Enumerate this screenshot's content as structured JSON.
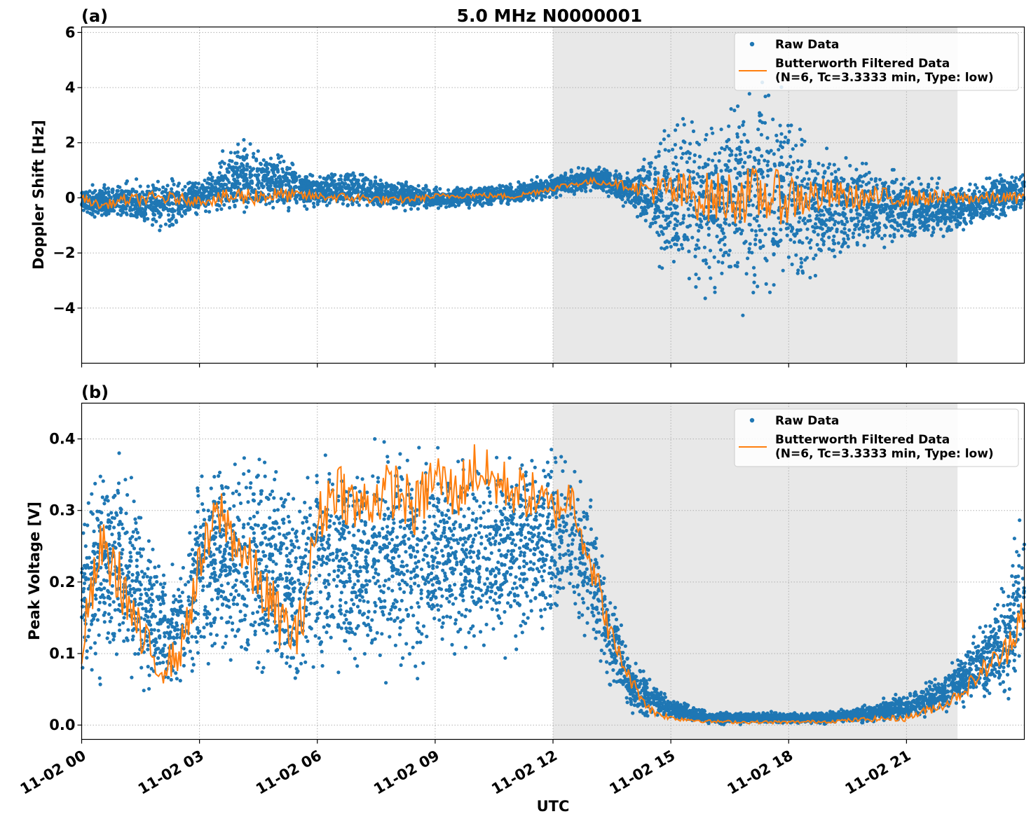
{
  "title": "5.0 MHz N0000001",
  "colors": {
    "raw": "#1f77b4",
    "filtered": "#ff7f0e",
    "shade": "#e8e8e8"
  },
  "chart_data": [
    {
      "type": "scatter",
      "panel_label": "(a)",
      "ylabel": "Doppler Shift [Hz]",
      "xlabel": "",
      "ylim": [
        -6.0,
        6.2
      ],
      "yticks": [
        -4,
        -2,
        0,
        2,
        4,
        6
      ],
      "ytick_labels": [
        "−4",
        "−2",
        "0",
        "2",
        "4",
        "6"
      ],
      "xlim_hours": [
        0,
        24
      ],
      "shaded_hours": [
        12,
        22.3
      ],
      "grid": true,
      "legend_position": "top-right",
      "legend": [
        "Raw Data",
        "Butterworth Filtered Data\n(N=6, Tc=3.3333 min, Type: low)"
      ],
      "series": [
        {
          "name": "Raw Data",
          "kind": "points",
          "envelope_hours": [
            0,
            1,
            2,
            3,
            4,
            5,
            6,
            7,
            8,
            9,
            10,
            11,
            12,
            13,
            14,
            15,
            16,
            17,
            18,
            19,
            20,
            21,
            22,
            23,
            24
          ],
          "upper": [
            0.5,
            0.7,
            0.9,
            0.8,
            2.4,
            1.9,
            0.9,
            1.2,
            0.7,
            0.5,
            0.5,
            0.6,
            0.9,
            1.3,
            1.0,
            3.5,
            4.2,
            5.0,
            4.4,
            2.4,
            1.6,
            1.2,
            0.8,
            0.9,
            1.2
          ],
          "lower": [
            -0.7,
            -1.0,
            -1.5,
            -0.7,
            -1.0,
            -0.8,
            -0.5,
            -0.5,
            -0.5,
            -0.5,
            -0.4,
            -0.3,
            -0.1,
            0.2,
            -0.5,
            -3.8,
            -4.3,
            -4.6,
            -4.4,
            -3.0,
            -2.2,
            -1.8,
            -1.7,
            -1.2,
            -0.7
          ]
        },
        {
          "name": "Butterworth Filtered Data",
          "kind": "line",
          "hours": [
            0,
            0.5,
            1,
            2,
            3,
            4,
            5,
            6,
            7,
            8,
            9,
            10,
            11,
            12,
            12.5,
            13,
            13.5,
            14,
            15,
            16,
            17,
            18,
            19,
            20,
            21,
            22,
            23,
            24
          ],
          "values": [
            0.0,
            -0.3,
            -0.1,
            0.0,
            -0.1,
            0.05,
            0.1,
            0.05,
            0.0,
            -0.1,
            0.05,
            0.1,
            0.05,
            0.35,
            0.5,
            0.6,
            0.55,
            0.4,
            0.2,
            0.0,
            0.1,
            0.0,
            0.1,
            0.0,
            0.0,
            0.0,
            0.0,
            0.0
          ]
        }
      ]
    },
    {
      "type": "scatter",
      "panel_label": "(b)",
      "ylabel": "Peak Voltage [V]",
      "xlabel": "UTC",
      "ylim": [
        -0.02,
        0.45
      ],
      "yticks": [
        0.0,
        0.1,
        0.2,
        0.3,
        0.4
      ],
      "ytick_labels": [
        "0.0",
        "0.1",
        "0.2",
        "0.3",
        "0.4"
      ],
      "xlim_hours": [
        0,
        24
      ],
      "xticks_hours": [
        0,
        3,
        6,
        9,
        12,
        15,
        18,
        21
      ],
      "xtick_labels": [
        "11-02 00",
        "11-02 03",
        "11-02 06",
        "11-02 09",
        "11-02 12",
        "11-02 15",
        "11-02 18",
        "11-02 21"
      ],
      "shaded_hours": [
        12,
        22.3
      ],
      "grid": true,
      "legend_position": "top-right",
      "legend": [
        "Raw Data",
        "Butterworth Filtered Data\n(N=6, Tc=3.3333 min, Type: low)"
      ],
      "series": [
        {
          "name": "Raw Data",
          "kind": "points",
          "envelope_hours": [
            0,
            0.5,
            1,
            1.5,
            2,
            2.5,
            3,
            3.5,
            4,
            4.5,
            5,
            5.5,
            6,
            6.5,
            7,
            7.5,
            8,
            9,
            10,
            11,
            12,
            12.5,
            13,
            13.5,
            14,
            15,
            16,
            17,
            18,
            19,
            20,
            21,
            22,
            22.5,
            23,
            23.5,
            24
          ],
          "upper": [
            0.34,
            0.4,
            0.4,
            0.35,
            0.25,
            0.26,
            0.39,
            0.42,
            0.41,
            0.42,
            0.4,
            0.36,
            0.42,
            0.42,
            0.42,
            0.42,
            0.42,
            0.42,
            0.42,
            0.42,
            0.41,
            0.4,
            0.35,
            0.2,
            0.1,
            0.04,
            0.02,
            0.02,
            0.02,
            0.02,
            0.03,
            0.05,
            0.08,
            0.12,
            0.16,
            0.22,
            0.36
          ],
          "lower": [
            0.03,
            0.04,
            0.03,
            0.02,
            0.02,
            0.02,
            0.04,
            0.05,
            0.05,
            0.03,
            0.02,
            0.02,
            0.04,
            0.04,
            0.03,
            0.05,
            0.05,
            0.05,
            0.06,
            0.08,
            0.12,
            0.12,
            0.08,
            0.03,
            0.01,
            0.005,
            0.0,
            0.0,
            0.0,
            0.0,
            0.0,
            0.005,
            0.01,
            0.02,
            0.02,
            0.02,
            0.03
          ]
        },
        {
          "name": "Butterworth Filtered Data",
          "kind": "line",
          "hours": [
            0,
            0.5,
            1,
            1.5,
            2,
            2.5,
            3,
            3.5,
            4,
            4.5,
            5,
            5.5,
            6,
            6.5,
            7,
            7.5,
            8,
            8.5,
            9,
            9.5,
            10,
            10.5,
            11,
            11.5,
            12,
            12.5,
            13,
            13.5,
            14,
            14.5,
            15,
            16,
            17,
            18,
            19,
            20,
            21,
            21.5,
            22,
            22.5,
            23,
            23.5,
            24
          ],
          "values": [
            0.11,
            0.25,
            0.2,
            0.12,
            0.08,
            0.1,
            0.22,
            0.3,
            0.25,
            0.2,
            0.15,
            0.12,
            0.28,
            0.34,
            0.3,
            0.32,
            0.33,
            0.3,
            0.35,
            0.32,
            0.36,
            0.34,
            0.33,
            0.32,
            0.3,
            0.32,
            0.22,
            0.12,
            0.06,
            0.02,
            0.01,
            0.005,
            0.004,
            0.004,
            0.005,
            0.008,
            0.01,
            0.02,
            0.03,
            0.05,
            0.08,
            0.1,
            0.17
          ]
        }
      ]
    }
  ]
}
